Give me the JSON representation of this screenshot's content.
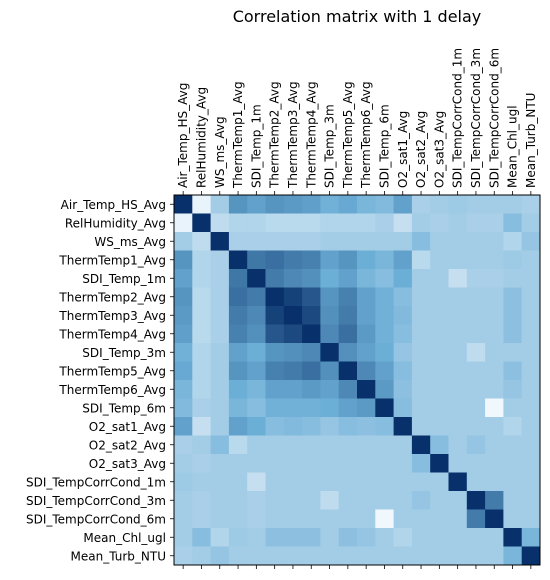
{
  "chart_data": {
    "type": "heatmap",
    "title": "Correlation matrix with 1 delay",
    "labels": [
      "Air_Temp_HS_Avg",
      "RelHumidity_Avg",
      "WS_ms_Avg",
      "ThermTemp1_Avg",
      "SDI_Temp_1m",
      "ThermTemp2_Avg",
      "ThermTemp3_Avg",
      "ThermTemp4_Avg",
      "SDI_Temp_3m",
      "ThermTemp5_Avg",
      "ThermTemp6_Avg",
      "SDI_Temp_6m",
      "O2_sat1_Avg",
      "O2_sat2_Avg",
      "O2_sat3_Avg",
      "SDI_TempCorrCond_1m",
      "SDI_TempCorrCond_3m",
      "SDI_TempCorrCond_6m",
      "Mean_Chl_ugl",
      "Mean_Turb_NTU"
    ],
    "colormap": "Blues",
    "colors": {
      "low": "#f7fbff",
      "mid": "#6baed6",
      "high": "#08306b"
    },
    "grid": false,
    "values": [
      [
        1.0,
        0.05,
        0.3,
        0.6,
        0.55,
        0.6,
        0.58,
        0.56,
        0.48,
        0.52,
        0.45,
        0.42,
        0.55,
        0.28,
        0.3,
        0.32,
        0.3,
        0.3,
        0.3,
        0.28
      ],
      [
        0.05,
        1.0,
        0.2,
        0.25,
        0.25,
        0.22,
        0.22,
        0.22,
        0.25,
        0.25,
        0.25,
        0.28,
        0.18,
        0.3,
        0.28,
        0.3,
        0.28,
        0.28,
        0.4,
        0.3
      ],
      [
        0.3,
        0.2,
        1.0,
        0.28,
        0.28,
        0.28,
        0.28,
        0.28,
        0.3,
        0.3,
        0.3,
        0.3,
        0.3,
        0.4,
        0.3,
        0.3,
        0.3,
        0.3,
        0.25,
        0.35
      ],
      [
        0.6,
        0.25,
        0.28,
        1.0,
        0.72,
        0.75,
        0.7,
        0.68,
        0.55,
        0.6,
        0.5,
        0.45,
        0.55,
        0.22,
        0.3,
        0.3,
        0.3,
        0.3,
        0.32,
        0.3
      ],
      [
        0.55,
        0.25,
        0.28,
        0.72,
        1.0,
        0.7,
        0.65,
        0.62,
        0.5,
        0.55,
        0.45,
        0.4,
        0.5,
        0.3,
        0.3,
        0.18,
        0.28,
        0.28,
        0.3,
        0.3
      ],
      [
        0.6,
        0.22,
        0.28,
        0.75,
        0.7,
        1.0,
        0.93,
        0.85,
        0.6,
        0.68,
        0.55,
        0.48,
        0.4,
        0.3,
        0.3,
        0.3,
        0.3,
        0.3,
        0.38,
        0.3
      ],
      [
        0.58,
        0.22,
        0.28,
        0.7,
        0.65,
        0.93,
        1.0,
        0.9,
        0.62,
        0.7,
        0.55,
        0.48,
        0.42,
        0.3,
        0.3,
        0.3,
        0.3,
        0.3,
        0.38,
        0.3
      ],
      [
        0.56,
        0.22,
        0.28,
        0.68,
        0.62,
        0.85,
        0.9,
        1.0,
        0.65,
        0.75,
        0.58,
        0.48,
        0.4,
        0.3,
        0.3,
        0.3,
        0.3,
        0.3,
        0.38,
        0.3
      ],
      [
        0.48,
        0.25,
        0.3,
        0.55,
        0.5,
        0.6,
        0.62,
        0.65,
        1.0,
        0.62,
        0.55,
        0.5,
        0.35,
        0.3,
        0.3,
        0.3,
        0.2,
        0.3,
        0.3,
        0.3
      ],
      [
        0.52,
        0.25,
        0.3,
        0.6,
        0.55,
        0.68,
        0.7,
        0.75,
        0.62,
        1.0,
        0.65,
        0.55,
        0.4,
        0.3,
        0.3,
        0.3,
        0.3,
        0.3,
        0.38,
        0.3
      ],
      [
        0.45,
        0.25,
        0.3,
        0.5,
        0.45,
        0.55,
        0.55,
        0.58,
        0.55,
        0.65,
        1.0,
        0.58,
        0.38,
        0.3,
        0.3,
        0.3,
        0.3,
        0.3,
        0.35,
        0.3
      ],
      [
        0.42,
        0.28,
        0.3,
        0.45,
        0.4,
        0.48,
        0.48,
        0.48,
        0.5,
        0.55,
        0.58,
        1.0,
        0.4,
        0.3,
        0.3,
        0.3,
        0.3,
        0.02,
        0.3,
        0.3
      ],
      [
        0.55,
        0.18,
        0.3,
        0.55,
        0.5,
        0.4,
        0.42,
        0.4,
        0.35,
        0.4,
        0.38,
        0.4,
        1.0,
        0.3,
        0.3,
        0.3,
        0.3,
        0.3,
        0.25,
        0.3
      ],
      [
        0.28,
        0.3,
        0.4,
        0.22,
        0.3,
        0.3,
        0.3,
        0.3,
        0.3,
        0.3,
        0.3,
        0.3,
        0.3,
        1.0,
        0.4,
        0.3,
        0.35,
        0.3,
        0.3,
        0.3
      ],
      [
        0.3,
        0.28,
        0.3,
        0.3,
        0.3,
        0.3,
        0.3,
        0.3,
        0.3,
        0.3,
        0.3,
        0.3,
        0.3,
        0.4,
        1.0,
        0.3,
        0.3,
        0.3,
        0.3,
        0.3
      ],
      [
        0.32,
        0.3,
        0.3,
        0.3,
        0.18,
        0.3,
        0.3,
        0.3,
        0.3,
        0.3,
        0.3,
        0.3,
        0.3,
        0.3,
        0.3,
        1.0,
        0.3,
        0.3,
        0.3,
        0.3
      ],
      [
        0.3,
        0.28,
        0.3,
        0.3,
        0.28,
        0.3,
        0.3,
        0.3,
        0.2,
        0.3,
        0.3,
        0.3,
        0.3,
        0.35,
        0.3,
        0.3,
        1.0,
        0.7,
        0.3,
        0.3
      ],
      [
        0.3,
        0.28,
        0.3,
        0.3,
        0.28,
        0.3,
        0.3,
        0.3,
        0.3,
        0.3,
        0.3,
        0.02,
        0.3,
        0.3,
        0.3,
        0.3,
        0.7,
        1.0,
        0.3,
        0.3
      ],
      [
        0.3,
        0.4,
        0.25,
        0.32,
        0.3,
        0.38,
        0.38,
        0.38,
        0.3,
        0.38,
        0.35,
        0.3,
        0.25,
        0.3,
        0.3,
        0.3,
        0.3,
        0.3,
        1.0,
        0.45
      ],
      [
        0.28,
        0.3,
        0.35,
        0.3,
        0.3,
        0.3,
        0.3,
        0.3,
        0.3,
        0.3,
        0.3,
        0.3,
        0.3,
        0.3,
        0.3,
        0.3,
        0.3,
        0.3,
        0.45,
        1.0
      ]
    ]
  }
}
